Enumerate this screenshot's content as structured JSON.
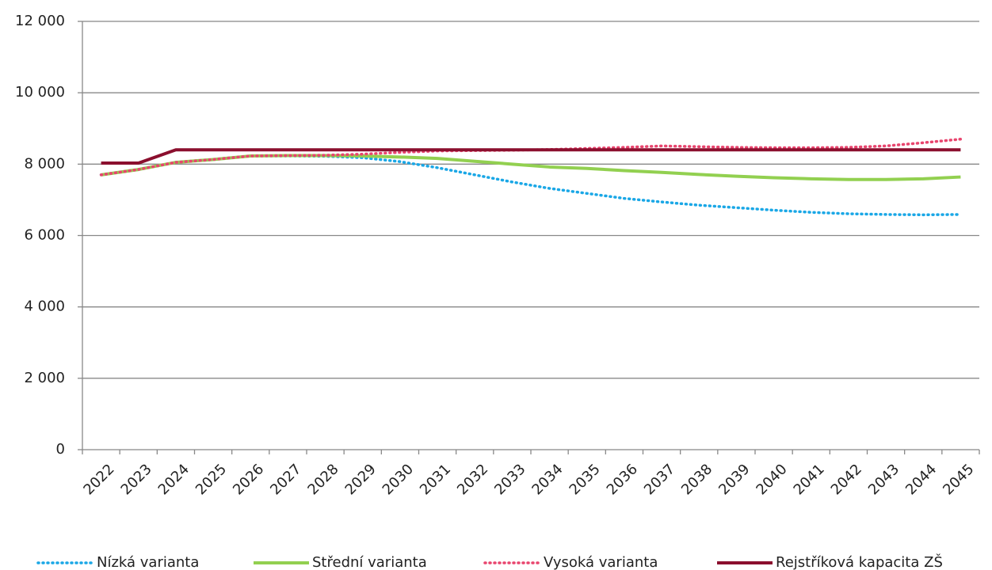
{
  "chart_data": {
    "type": "line",
    "categories": [
      "2022",
      "2023",
      "2024",
      "2025",
      "2026",
      "2027",
      "2028",
      "2029",
      "2030",
      "2031",
      "2032",
      "2033",
      "2034",
      "2035",
      "2036",
      "2037",
      "2038",
      "2039",
      "2040",
      "2041",
      "2042",
      "2043",
      "2044",
      "2045"
    ],
    "series": [
      {
        "name": "Nízká varianta",
        "color": "#1aa7e6",
        "dash": "dotted",
        "values": [
          7700,
          7850,
          8050,
          8130,
          8230,
          8230,
          8220,
          8180,
          8070,
          7900,
          7700,
          7500,
          7320,
          7180,
          7040,
          6940,
          6850,
          6780,
          6710,
          6650,
          6610,
          6590,
          6580,
          6590
        ]
      },
      {
        "name": "Střední varianta",
        "color": "#92d050",
        "dash": "solid",
        "values": [
          7700,
          7850,
          8050,
          8130,
          8230,
          8240,
          8240,
          8230,
          8200,
          8160,
          8080,
          8000,
          7920,
          7880,
          7820,
          7770,
          7710,
          7660,
          7620,
          7590,
          7570,
          7570,
          7590,
          7640
        ]
      },
      {
        "name": "Vysoká varianta",
        "color": "#e8456e",
        "dash": "dotted",
        "values": [
          7700,
          7850,
          8050,
          8130,
          8230,
          8240,
          8250,
          8280,
          8330,
          8370,
          8380,
          8390,
          8410,
          8440,
          8470,
          8510,
          8490,
          8470,
          8460,
          8460,
          8470,
          8510,
          8600,
          8700
        ]
      },
      {
        "name": "Rejstříková kapacita ZŠ",
        "color": "#8b0f2e",
        "dash": "solid",
        "values": [
          8030,
          8030,
          8400,
          8400,
          8400,
          8400,
          8400,
          8400,
          8400,
          8400,
          8400,
          8400,
          8400,
          8400,
          8400,
          8400,
          8400,
          8400,
          8400,
          8400,
          8400,
          8400,
          8400,
          8400
        ]
      }
    ],
    "ylim": [
      0,
      12000
    ],
    "yticks": [
      0,
      {
        "value": 2000,
        "label": "2 000"
      },
      {
        "value": 4000,
        "label": "4 000"
      },
      {
        "value": 6000,
        "label": "6 000"
      },
      {
        "value": 8000,
        "label": "8 000"
      },
      {
        "value": 10000,
        "label": "10 000"
      },
      {
        "value": 12000,
        "label": "12 000"
      }
    ],
    "grid": true,
    "legend": "bottom"
  }
}
